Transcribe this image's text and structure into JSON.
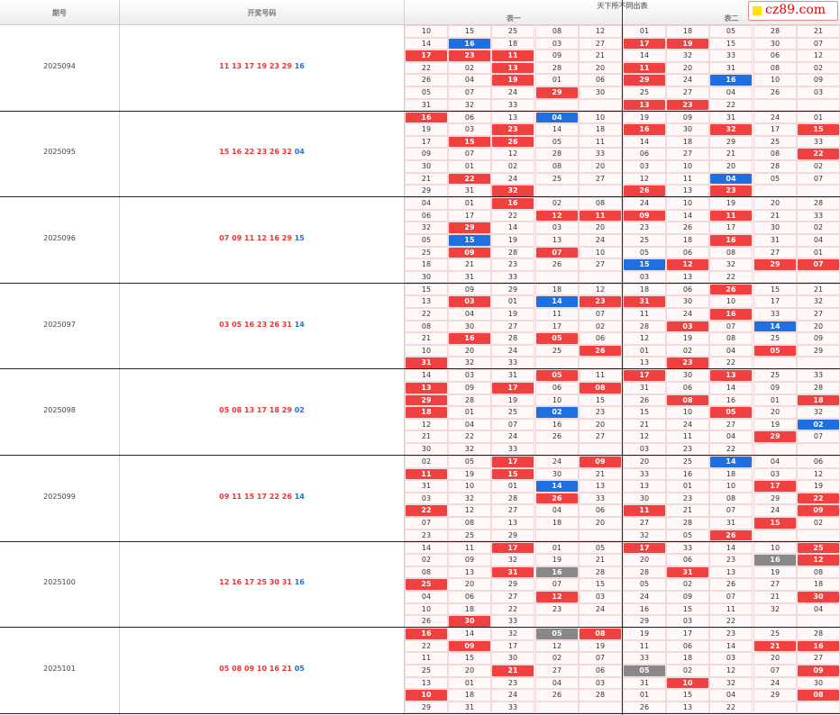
{
  "header": {
    "period_label": "期号",
    "draw_label": "开奖号码",
    "group_label": "天下所不同出表",
    "table1_label": "表一",
    "table2_label": "表二"
  },
  "logo": {
    "text": "cz89.com"
  },
  "colors": {
    "red": "#f04040",
    "blue": "#1e6fe0",
    "gray": "#888888"
  },
  "periods": [
    {
      "id": "2025094",
      "reds": "11 13 17 19 23 29",
      "blue": "16",
      "rows": [
        "10 15 25 08 12 01 18 05 28 21",
        "14 16b 18 03 27 17r 19r 15 30 07",
        "17r 23r 11r 09 21 14 32 33 06 12",
        "22 02 13r 28 20 11r 20 31 08 02",
        "26 04 19r 01 06 29r 24 16b 10 09",
        "05 07 24 29r 30 25 27 04 26 03",
        "31 32 33 - - 13r 23r 22 - -"
      ]
    },
    {
      "id": "2025095",
      "reds": "15 16 22 23 26 32",
      "blue": "04",
      "rows": [
        "16r 06 13 04b 10 19 09 31 24 01",
        "19 03 23r 14 18 16r 30 32r 17 15r",
        "17 15r 26r 05 11 14 18 29 25 33",
        "09 07 12 28 33 06 27 21 08 22r",
        "30 01 02 08 20 03 10 20 28 02",
        "21 22r 24 25 27 12 11 04b 05 07",
        "29 31 32r - - 26r 13 23r - -"
      ]
    },
    {
      "id": "2025096",
      "reds": "07 09 11 12 16 29",
      "blue": "15",
      "rows": [
        "04 01 16r 02 08 24 10 19 20 28",
        "06 17 22 12r 11r 09r 14 11r 21 33",
        "32 29r 14 03 20 23 26 17 30 02",
        "05 15b 19 13 24 25 18 16r 31 04",
        "25 09r 28 07r 10 05 06 08 27 01",
        "18 21 23 26 27 15b 12r 32 29r 07r",
        "30 31 33 - - 03 13 22 - -"
      ]
    },
    {
      "id": "2025097",
      "reds": "03 05 16 23 26 31",
      "blue": "14",
      "rows": [
        "15 09 29 18 12 18 06 26r 15 21",
        "13 03r 01 14b 23r 31r 30 10 17 32",
        "22 04 19 11 07 11 24 16r 33 27",
        "08 30 27 17 02 28 03r 07 14b 20",
        "21 16r 28 05r 06 12 19 08 25 09",
        "10 20 24 25 26r 01 02 04 05r 29",
        "31r 32 33 - - 13 23r 22 - -"
      ]
    },
    {
      "id": "2025098",
      "reds": "05 08 13 17 18 29",
      "blue": "02",
      "rows": [
        "14 03 31 05r 11 17r 30 13r 25 33",
        "13r 09 17r 06 08r 31 06 14 09 28",
        "29r 28 19 10 15 26 08r 16 01 18r",
        "18r 01 25 02b 23 15 10 05r 20 32",
        "12 04 07 16 20 21 24 27 19 02b",
        "21 22 24 26 27 12 11 04 29r 07",
        "30 32 33 - - 03 23 22 - -"
      ]
    },
    {
      "id": "2025099",
      "reds": "09 11 15 17 22 26",
      "blue": "14",
      "rows": [
        "02 05 17r 24 09r 20 25 14b 04 06",
        "11r 19 15r 30 21 33 16 18 03 12",
        "31 10 01 14b 13 13 01 10 17r 19",
        "03 32 28 26r 33 30 23 08 29 22r",
        "22r 12 27 04 06 11r 21 07 24 09r",
        "07 08 13 18 20 27 28 31 15r 02",
        "23 25 29 - - 32 05 26r - -"
      ]
    },
    {
      "id": "2025100",
      "reds": "12 16 17 25 30 31",
      "blue": "16",
      "rows": [
        "14 11 17r 01 05 17r 33 14 10 25r",
        "02 09 32 19 21 20 06 23 16g 12r",
        "08 13 31r 16g 28 28 31r 13 19 08",
        "25r 20 29 07 15 05 02 26 27 18",
        "04 06 27 12r 03 24 09 07 21 30r",
        "10 18 22 23 24 16 15 11 32 04",
        "26 30r 33 - - 29 03 22 - -"
      ]
    },
    {
      "id": "2025101",
      "reds": "05 08 09 10 16 21",
      "blue": "05",
      "rows": [
        "16r 14 32 05g 08r 19 17 23 25 28",
        "22 09r 17 12 19 11 06 14 21r 16r",
        "11 15 30 02 07 33 18 03 20 27",
        "25 20 21r 27 06 05g 02 12 07 09r",
        "13 01 23 04 03 31 10r 32 24 30",
        "10r 18 24 26 28 01 15 04 29 08r",
        "29 31 33 - - 26 13 22 - -"
      ]
    }
  ]
}
